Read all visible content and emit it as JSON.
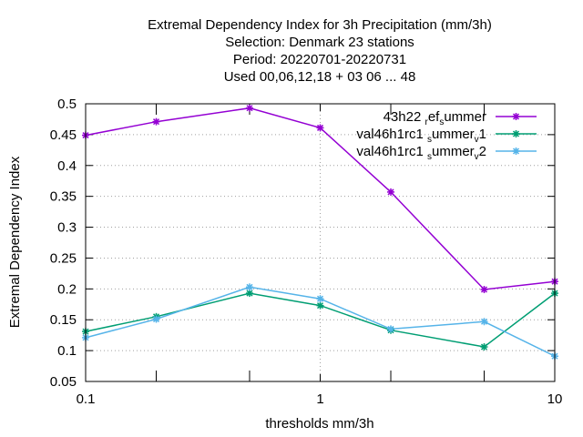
{
  "title_lines": [
    "Extremal Dependency Index  for 3h Precipitation (mm/3h)",
    "Selection: Denmark      23 stations",
    "Period: 20220701-20220731",
    "Used  00,06,12,18  + 03 06 ... 48"
  ],
  "chart_data": {
    "type": "line",
    "xlabel": "thresholds mm/3h",
    "ylabel": "Extremal Dependency Index",
    "xscale": "log",
    "xlim": [
      0.1,
      10
    ],
    "ylim": [
      0.05,
      0.5
    ],
    "x_ticks": [
      0.1,
      1,
      10
    ],
    "x_tick_labels": [
      "0.1",
      "1",
      "10"
    ],
    "y_ticks": [
      0.05,
      0.1,
      0.15,
      0.2,
      0.25,
      0.3,
      0.35,
      0.4,
      0.45,
      0.5
    ],
    "y_tick_labels": [
      "0.05",
      "0.1",
      "0.15",
      "0.2",
      "0.25",
      "0.3",
      "0.35",
      "0.4",
      "0.45",
      "0.5"
    ],
    "grid": true,
    "legend_position": "top-right",
    "x": [
      0.1,
      0.2,
      0.5,
      1,
      2,
      5,
      10
    ],
    "series": [
      {
        "legend_main": "43h22",
        "legend_parts": [
          [
            "43h22 ",
            false
          ],
          [
            "r",
            true
          ],
          [
            "ef",
            false
          ],
          [
            "s",
            true
          ],
          [
            "ummer",
            false
          ]
        ],
        "color": "#9400d3",
        "values": [
          0.449,
          0.471,
          0.493,
          0.461,
          0.357,
          0.199,
          0.212
        ]
      },
      {
        "legend_parts": [
          [
            "val46h1rc1 ",
            false
          ],
          [
            "s",
            true
          ],
          [
            "ummer",
            false
          ],
          [
            "v",
            true
          ],
          [
            "1",
            false
          ]
        ],
        "color": "#009e73",
        "values": [
          0.131,
          0.155,
          0.193,
          0.173,
          0.133,
          0.106,
          0.193
        ]
      },
      {
        "legend_parts": [
          [
            "val46h1rc1 ",
            false
          ],
          [
            "s",
            true
          ],
          [
            "ummer",
            false
          ],
          [
            "v",
            true
          ],
          [
            "2",
            false
          ]
        ],
        "color": "#56b4e9",
        "values": [
          0.121,
          0.151,
          0.203,
          0.184,
          0.135,
          0.147,
          0.091
        ]
      }
    ]
  }
}
